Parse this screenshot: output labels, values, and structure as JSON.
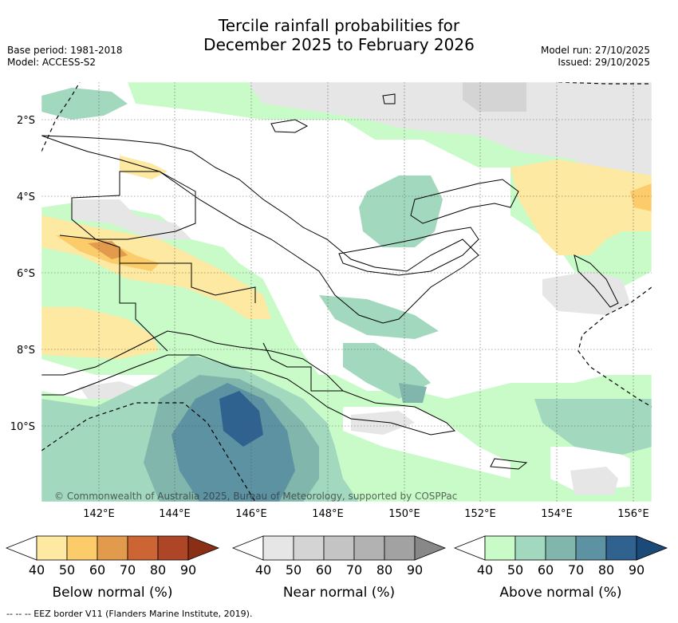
{
  "title_line1": "Tercile rainfall probabilities for",
  "title_line2": "December 2025 to February 2026",
  "base_period": "Base period: 1981-2018",
  "model": "Model: ACCESS-S2",
  "model_run": "Model run: 27/10/2025",
  "issued": "Issued: 29/10/2025",
  "credit": "© Commonwealth of Australia 2025, Bureau of Meteorology, supported by COSPPac",
  "footnote": "--  --  -- EEZ border V11 (Flanders Marine Institute, 2019).",
  "lat_labels": [
    "2°S",
    "4°S",
    "6°S",
    "8°S",
    "10°S"
  ],
  "lon_labels": [
    "142°E",
    "144°E",
    "146°E",
    "148°E",
    "150°E",
    "152°E",
    "154°E",
    "156°E"
  ],
  "legends": [
    {
      "label": "Below normal (%)",
      "ticks": [
        "40",
        "50",
        "60",
        "70",
        "80",
        "90"
      ],
      "colors": [
        "#ffffff",
        "#fde9a1",
        "#fccb6a",
        "#e29a4c",
        "#cd6433",
        "#ae4526",
        "#8b2e16"
      ]
    },
    {
      "label": "Near normal (%)",
      "ticks": [
        "40",
        "50",
        "60",
        "70",
        "80",
        "90"
      ],
      "colors": [
        "#ffffff",
        "#e6e6e6",
        "#d4d4d4",
        "#c4c4c4",
        "#b2b2b2",
        "#a2a2a2",
        "#888888"
      ]
    },
    {
      "label": "Above normal (%)",
      "ticks": [
        "40",
        "50",
        "60",
        "70",
        "80",
        "90"
      ],
      "colors": [
        "#ffffff",
        "#c8fbc8",
        "#a2d8bd",
        "#80b6ab",
        "#5c92a2",
        "#30628f",
        "#1c4a78"
      ]
    }
  ]
}
